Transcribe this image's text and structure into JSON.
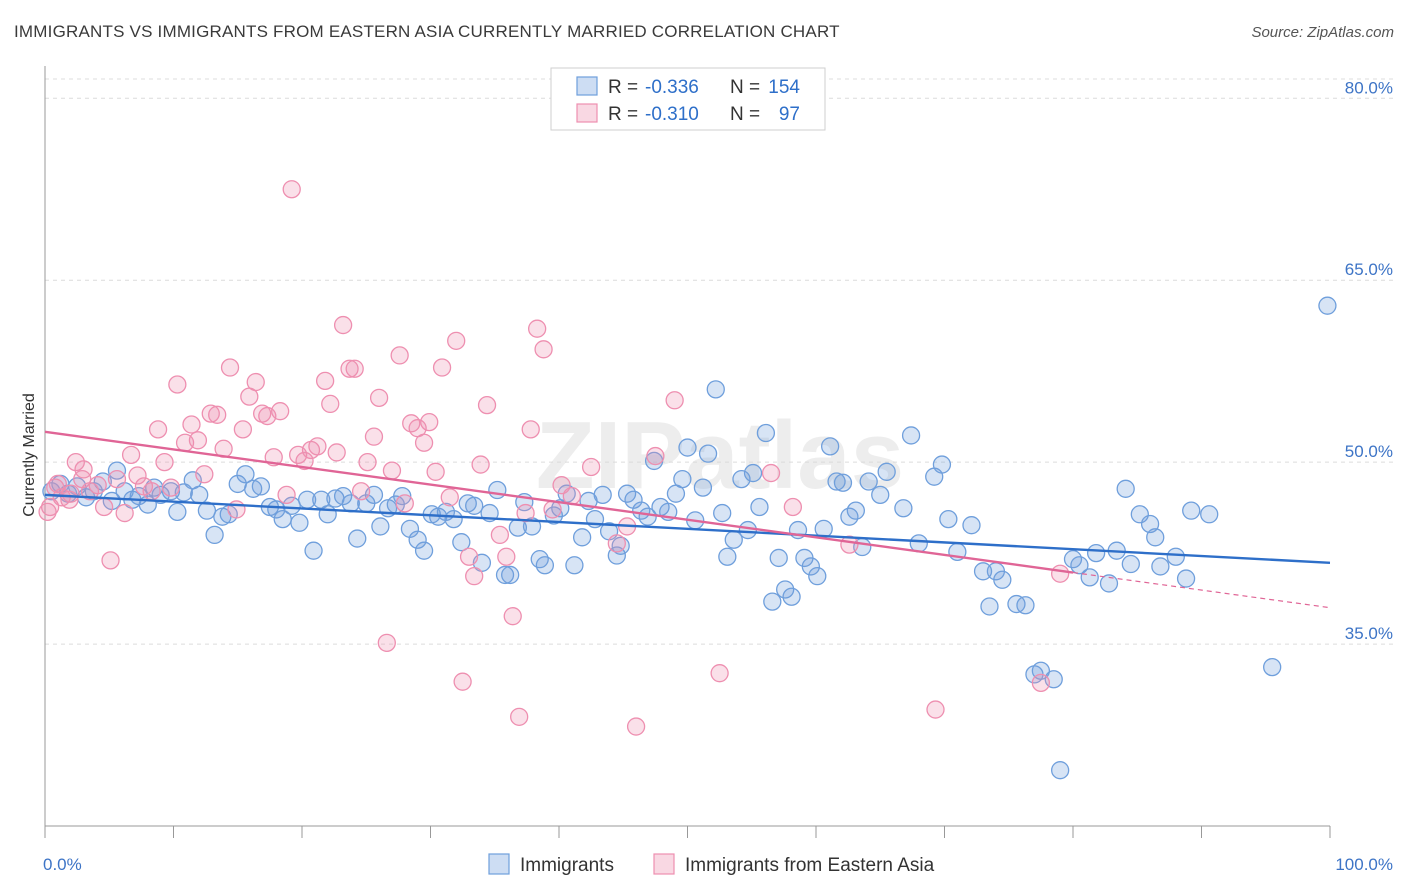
{
  "title": "IMMIGRANTS VS IMMIGRANTS FROM EASTERN ASIA CURRENTLY MARRIED CORRELATION CHART",
  "source": "Source: ZipAtlas.com",
  "watermark": "ZIPatlas",
  "chart_data": {
    "type": "scatter",
    "ylabel": "Currently Married",
    "xlim": [
      0,
      100
    ],
    "ylim": [
      20,
      82
    ],
    "x_tick_labels": [
      "0.0%",
      "100.0%"
    ],
    "y_ticks": [
      35,
      50,
      65,
      80
    ],
    "y_tick_labels": [
      "35.0%",
      "50.0%",
      "65.0%",
      "80.0%"
    ],
    "grid": true,
    "legend_placement": "top-center",
    "stats": [
      {
        "r_label": "R = ",
        "r_value": "-0.336",
        "n_label": "N = ",
        "n_value": "154"
      },
      {
        "r_label": "R = ",
        "r_value": "-0.310",
        "n_label": "N = ",
        "n_value": "97"
      }
    ],
    "series": [
      {
        "name": "Immigrants",
        "color": "#6f9fdc",
        "line_color": "#2e6fc9",
        "trend": {
          "x": [
            0,
            100
          ],
          "y": [
            47.3,
            41.7
          ]
        },
        "points": [
          [
            0.5,
            47.6
          ],
          [
            1.2,
            48.2
          ],
          [
            1.8,
            47.4
          ],
          [
            2.5,
            48.0
          ],
          [
            3.2,
            47.1
          ],
          [
            3.8,
            47.6
          ],
          [
            4.5,
            48.4
          ],
          [
            5.2,
            46.8
          ],
          [
            5.6,
            49.3
          ],
          [
            6.2,
            47.6
          ],
          [
            6.8,
            46.9
          ],
          [
            7.3,
            47.2
          ],
          [
            8.0,
            46.5
          ],
          [
            8.5,
            47.9
          ],
          [
            9.0,
            47.3
          ],
          [
            9.8,
            47.6
          ],
          [
            10.3,
            45.9
          ],
          [
            10.8,
            47.5
          ],
          [
            11.5,
            48.5
          ],
          [
            12.0,
            47.3
          ],
          [
            12.6,
            46.0
          ],
          [
            13.2,
            44.0
          ],
          [
            13.8,
            45.5
          ],
          [
            14.3,
            45.7
          ],
          [
            15.0,
            48.2
          ],
          [
            15.6,
            49.0
          ],
          [
            16.2,
            47.8
          ],
          [
            16.8,
            48.0
          ],
          [
            17.5,
            46.3
          ],
          [
            18.0,
            46.1
          ],
          [
            18.5,
            45.3
          ],
          [
            19.2,
            46.4
          ],
          [
            19.8,
            45.0
          ],
          [
            20.4,
            46.9
          ],
          [
            20.9,
            42.7
          ],
          [
            21.5,
            46.9
          ],
          [
            22.0,
            45.7
          ],
          [
            22.6,
            47.0
          ],
          [
            23.2,
            47.2
          ],
          [
            23.8,
            46.6
          ],
          [
            24.3,
            43.7
          ],
          [
            25.0,
            46.6
          ],
          [
            25.6,
            47.3
          ],
          [
            26.1,
            44.7
          ],
          [
            26.7,
            46.2
          ],
          [
            27.3,
            46.5
          ],
          [
            27.8,
            47.2
          ],
          [
            28.4,
            44.5
          ],
          [
            29.0,
            43.6
          ],
          [
            29.5,
            42.7
          ],
          [
            30.1,
            45.7
          ],
          [
            30.6,
            45.5
          ],
          [
            31.2,
            45.9
          ],
          [
            31.8,
            45.3
          ],
          [
            32.4,
            43.4
          ],
          [
            32.9,
            46.6
          ],
          [
            33.4,
            46.4
          ],
          [
            34.0,
            41.7
          ],
          [
            34.6,
            45.8
          ],
          [
            35.2,
            47.7
          ],
          [
            35.8,
            40.7
          ],
          [
            36.2,
            40.7
          ],
          [
            36.8,
            44.6
          ],
          [
            37.3,
            46.7
          ],
          [
            37.9,
            44.7
          ],
          [
            38.5,
            42.0
          ],
          [
            38.9,
            41.5
          ],
          [
            39.6,
            45.6
          ],
          [
            40.1,
            46.2
          ],
          [
            40.6,
            47.4
          ],
          [
            41.2,
            41.5
          ],
          [
            41.8,
            43.8
          ],
          [
            42.3,
            46.8
          ],
          [
            42.8,
            45.3
          ],
          [
            43.4,
            47.3
          ],
          [
            43.9,
            44.3
          ],
          [
            44.5,
            42.3
          ],
          [
            44.8,
            43.1
          ],
          [
            45.3,
            47.4
          ],
          [
            45.8,
            46.9
          ],
          [
            46.4,
            46.0
          ],
          [
            46.9,
            45.5
          ],
          [
            47.4,
            50.1
          ],
          [
            47.9,
            46.3
          ],
          [
            48.5,
            45.9
          ],
          [
            49.1,
            47.4
          ],
          [
            49.6,
            48.6
          ],
          [
            50.0,
            51.2
          ],
          [
            50.6,
            45.2
          ],
          [
            51.2,
            47.9
          ],
          [
            51.6,
            50.7
          ],
          [
            52.2,
            56.0
          ],
          [
            52.7,
            45.8
          ],
          [
            53.1,
            42.2
          ],
          [
            53.6,
            43.6
          ],
          [
            54.2,
            48.6
          ],
          [
            54.7,
            44.4
          ],
          [
            55.1,
            49.1
          ],
          [
            55.6,
            46.3
          ],
          [
            56.1,
            52.4
          ],
          [
            56.6,
            38.5
          ],
          [
            57.1,
            42.1
          ],
          [
            57.6,
            39.5
          ],
          [
            58.1,
            38.9
          ],
          [
            58.6,
            44.4
          ],
          [
            59.1,
            42.1
          ],
          [
            59.6,
            41.4
          ],
          [
            60.1,
            40.6
          ],
          [
            60.6,
            44.5
          ],
          [
            61.1,
            51.3
          ],
          [
            61.6,
            48.4
          ],
          [
            62.1,
            48.3
          ],
          [
            62.6,
            45.5
          ],
          [
            63.1,
            46.0
          ],
          [
            63.6,
            43.0
          ],
          [
            64.1,
            48.4
          ],
          [
            65.0,
            47.3
          ],
          [
            65.5,
            49.2
          ],
          [
            66.8,
            46.2
          ],
          [
            67.4,
            52.2
          ],
          [
            68.0,
            43.3
          ],
          [
            69.2,
            48.8
          ],
          [
            69.8,
            49.8
          ],
          [
            70.3,
            45.3
          ],
          [
            71.0,
            42.6
          ],
          [
            72.1,
            44.8
          ],
          [
            73.0,
            41.0
          ],
          [
            73.5,
            38.1
          ],
          [
            74.0,
            41.0
          ],
          [
            74.5,
            40.3
          ],
          [
            75.6,
            38.3
          ],
          [
            76.3,
            38.2
          ],
          [
            77.0,
            32.5
          ],
          [
            77.5,
            32.8
          ],
          [
            78.5,
            32.1
          ],
          [
            79.0,
            24.6
          ],
          [
            80.0,
            42.0
          ],
          [
            80.5,
            41.5
          ],
          [
            81.3,
            40.5
          ],
          [
            81.8,
            42.5
          ],
          [
            82.8,
            40.0
          ],
          [
            83.4,
            42.7
          ],
          [
            84.1,
            47.8
          ],
          [
            84.5,
            41.6
          ],
          [
            85.2,
            45.7
          ],
          [
            86.0,
            44.9
          ],
          [
            86.4,
            43.8
          ],
          [
            86.8,
            41.4
          ],
          [
            88.0,
            42.2
          ],
          [
            88.8,
            40.4
          ],
          [
            89.2,
            46.0
          ],
          [
            90.6,
            45.7
          ],
          [
            95.5,
            33.1
          ],
          [
            99.8,
            62.9
          ]
        ]
      },
      {
        "name": "Immigrants from Eastern Asia",
        "color": "#ee8fb0",
        "line_color": "#e06596",
        "trend": {
          "x": [
            0,
            80
          ],
          "y": [
            52.5,
            40.9
          ]
        },
        "trend_ext": {
          "x": [
            80,
            100
          ],
          "y": [
            40.9,
            38.0
          ]
        },
        "points": [
          [
            0.4,
            46.3
          ],
          [
            0.8,
            47.9
          ],
          [
            1.3,
            47.1
          ],
          [
            1.9,
            46.9
          ],
          [
            2.4,
            50.0
          ],
          [
            2.9,
            48.6
          ],
          [
            3.5,
            47.6
          ],
          [
            4.1,
            48.1
          ],
          [
            4.6,
            46.3
          ],
          [
            5.1,
            41.9
          ],
          [
            5.6,
            48.6
          ],
          [
            6.2,
            45.8
          ],
          [
            6.7,
            50.6
          ],
          [
            7.2,
            48.9
          ],
          [
            7.7,
            48.0
          ],
          [
            8.3,
            47.6
          ],
          [
            8.8,
            52.7
          ],
          [
            9.3,
            50.0
          ],
          [
            9.8,
            47.9
          ],
          [
            10.3,
            56.4
          ],
          [
            10.9,
            51.6
          ],
          [
            11.4,
            53.1
          ],
          [
            11.9,
            51.8
          ],
          [
            12.4,
            49.0
          ],
          [
            12.9,
            54.0
          ],
          [
            13.4,
            53.9
          ],
          [
            13.9,
            51.1
          ],
          [
            14.4,
            57.8
          ],
          [
            14.9,
            46.1
          ],
          [
            15.4,
            52.7
          ],
          [
            15.9,
            55.4
          ],
          [
            16.4,
            56.6
          ],
          [
            16.9,
            54.0
          ],
          [
            17.3,
            53.8
          ],
          [
            17.8,
            50.4
          ],
          [
            18.3,
            54.2
          ],
          [
            18.8,
            47.3
          ],
          [
            19.2,
            72.5
          ],
          [
            19.7,
            50.6
          ],
          [
            20.2,
            50.1
          ],
          [
            20.7,
            51.0
          ],
          [
            21.2,
            51.3
          ],
          [
            21.8,
            56.7
          ],
          [
            22.2,
            54.8
          ],
          [
            22.7,
            50.8
          ],
          [
            23.2,
            61.3
          ],
          [
            23.7,
            57.7
          ],
          [
            24.1,
            57.7
          ],
          [
            24.6,
            47.6
          ],
          [
            25.1,
            50.0
          ],
          [
            25.6,
            52.1
          ],
          [
            26.0,
            55.3
          ],
          [
            26.6,
            35.1
          ],
          [
            27.0,
            49.3
          ],
          [
            27.6,
            58.8
          ],
          [
            28.0,
            46.6
          ],
          [
            28.5,
            53.2
          ],
          [
            29.0,
            52.8
          ],
          [
            29.5,
            51.6
          ],
          [
            29.9,
            53.3
          ],
          [
            30.4,
            49.2
          ],
          [
            30.9,
            57.8
          ],
          [
            31.5,
            47.1
          ],
          [
            32.0,
            60.0
          ],
          [
            32.5,
            31.9
          ],
          [
            33.0,
            42.2
          ],
          [
            33.4,
            40.6
          ],
          [
            33.9,
            49.8
          ],
          [
            34.4,
            54.7
          ],
          [
            35.4,
            44.0
          ],
          [
            35.9,
            42.2
          ],
          [
            36.4,
            37.3
          ],
          [
            36.9,
            29.0
          ],
          [
            37.4,
            45.8
          ],
          [
            37.8,
            52.7
          ],
          [
            38.3,
            61.0
          ],
          [
            38.8,
            59.3
          ],
          [
            39.5,
            46.1
          ],
          [
            40.2,
            48.1
          ],
          [
            41.0,
            47.2
          ],
          [
            42.5,
            49.6
          ],
          [
            44.5,
            43.3
          ],
          [
            45.3,
            44.7
          ],
          [
            46.0,
            28.2
          ],
          [
            47.5,
            50.5
          ],
          [
            49.0,
            55.1
          ],
          [
            52.5,
            32.6
          ],
          [
            56.5,
            49.1
          ],
          [
            58.2,
            46.3
          ],
          [
            62.6,
            43.2
          ],
          [
            69.3,
            29.6
          ],
          [
            77.5,
            31.8
          ],
          [
            79.0,
            40.8
          ],
          [
            1.0,
            48.2
          ],
          [
            2.0,
            47.4
          ],
          [
            3.0,
            49.4
          ],
          [
            0.2,
            45.9
          ]
        ]
      }
    ]
  }
}
